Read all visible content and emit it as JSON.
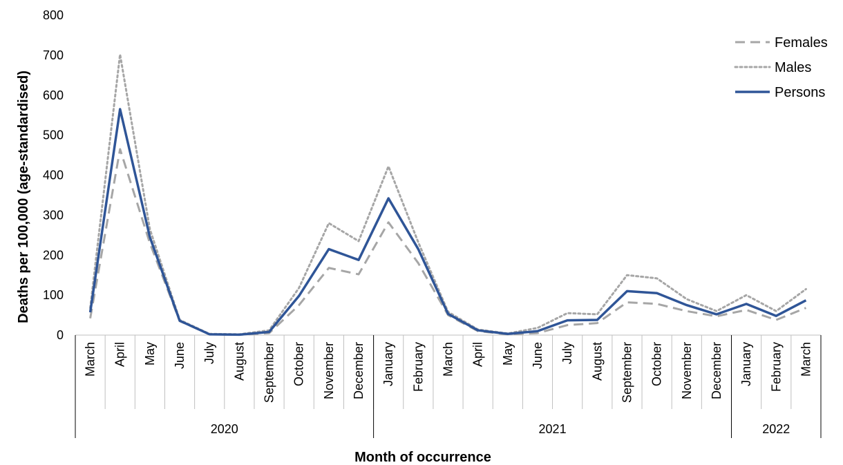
{
  "chart_data": {
    "type": "line",
    "xlabel": "Month of occurrence",
    "ylabel": "Deaths per 100,000 (age-standardised)",
    "ylim": [
      0,
      800
    ],
    "yticks": [
      0,
      100,
      200,
      300,
      400,
      500,
      600,
      700,
      800
    ],
    "categories": [
      "March",
      "April",
      "May",
      "June",
      "July",
      "August",
      "September",
      "October",
      "November",
      "December",
      "January",
      "February",
      "March",
      "April",
      "May",
      "June",
      "July",
      "August",
      "September",
      "October",
      "November",
      "December",
      "January",
      "February",
      "March"
    ],
    "year_groups": [
      {
        "label": "2020",
        "count": 10
      },
      {
        "label": "2021",
        "count": 12
      },
      {
        "label": "2022",
        "count": 3
      }
    ],
    "legend_position": "top-right",
    "grid": false,
    "series": [
      {
        "name": "Females",
        "color": "#a6a6a6",
        "style": "dashed",
        "values": [
          42,
          465,
          230,
          35,
          2,
          1,
          5,
          75,
          168,
          152,
          282,
          180,
          50,
          10,
          2,
          5,
          25,
          30,
          82,
          78,
          60,
          47,
          63,
          38,
          68
        ]
      },
      {
        "name": "Males",
        "color": "#a6a6a6",
        "style": "dotted",
        "values": [
          68,
          702,
          265,
          38,
          3,
          2,
          12,
          118,
          280,
          235,
          422,
          232,
          58,
          14,
          4,
          18,
          55,
          52,
          150,
          142,
          90,
          60,
          100,
          60,
          115
        ]
      },
      {
        "name": "Persons",
        "color": "#2f5597",
        "style": "solid",
        "values": [
          57,
          565,
          245,
          36,
          2,
          1,
          8,
          98,
          215,
          188,
          342,
          215,
          53,
          12,
          3,
          10,
          37,
          38,
          110,
          105,
          75,
          52,
          78,
          48,
          87
        ]
      }
    ]
  }
}
